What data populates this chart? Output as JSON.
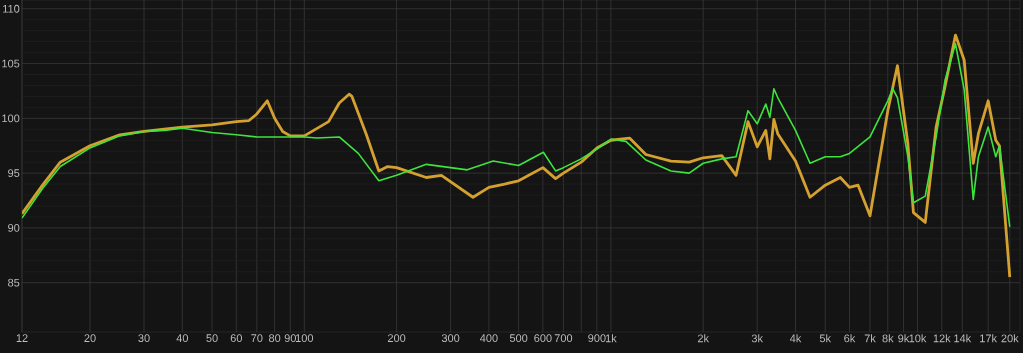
{
  "chart_data": {
    "type": "line",
    "log": "x",
    "grid": true,
    "marker": "none",
    "line_style": "solid",
    "xlim": [
      12,
      21600
    ],
    "ylim": [
      80.5,
      110.8
    ],
    "xticks": [
      12,
      20,
      30,
      40,
      50,
      60,
      70,
      80,
      90,
      100,
      200,
      300,
      400,
      500,
      600,
      700,
      {
        "value": 800,
        "label": null
      },
      900,
      {
        "value": 1000,
        "label": "1k"
      },
      {
        "value": 2000,
        "label": "2k"
      },
      {
        "value": 3000,
        "label": "3k"
      },
      {
        "value": 4000,
        "label": "4k"
      },
      {
        "value": 5000,
        "label": "5k"
      },
      {
        "value": 6000,
        "label": "6k"
      },
      {
        "value": 7000,
        "label": "7k"
      },
      {
        "value": 8000,
        "label": "8k"
      },
      {
        "value": 9000,
        "label": "9k"
      },
      {
        "value": 10000,
        "label": "10k"
      },
      {
        "value": 12000,
        "label": "12k"
      },
      {
        "value": 14000,
        "label": "14k"
      },
      {
        "value": 17000,
        "label": "17k"
      },
      {
        "value": 20000,
        "label": "20k"
      }
    ],
    "yticks": [
      85,
      90,
      95,
      100,
      105,
      110
    ],
    "series": [
      {
        "color": "#d4a030",
        "x": [
          12,
          14,
          16,
          20,
          25,
          30,
          40,
          50,
          60,
          66,
          70,
          75.7,
          80,
          85,
          90,
          100,
          120,
          130,
          140,
          143,
          159,
          175,
          187,
          200,
          250,
          280,
          355,
          400,
          450,
          500,
          600,
          660,
          700,
          800,
          900,
          1000,
          1150,
          1300,
          1570,
          1800,
          2000,
          2300,
          2560,
          2800,
          3000,
          3200,
          3300,
          3400,
          3500,
          4000,
          4460,
          5000,
          5600,
          6000,
          6400,
          7000,
          8000,
          8600,
          9300,
          9700,
          10600,
          11500,
          12300,
          13300,
          14200,
          15200,
          15800,
          17000,
          18000,
          18500,
          20000
        ],
        "values": [
          91.3,
          93.9,
          96.0,
          97.5,
          98.5,
          98.8,
          99.2,
          99.4,
          99.7,
          99.8,
          100.4,
          101.6,
          100.0,
          98.8,
          98.4,
          98.4,
          99.7,
          101.4,
          102.2,
          102.0,
          98.6,
          95.2,
          95.6,
          95.5,
          94.6,
          94.8,
          92.8,
          93.7,
          94.0,
          94.3,
          95.5,
          94.5,
          95.0,
          96.0,
          97.3,
          98.0,
          98.2,
          96.7,
          96.1,
          96.0,
          96.4,
          96.6,
          94.8,
          99.7,
          97.4,
          98.9,
          96.3,
          99.9,
          98.6,
          96.1,
          92.8,
          93.9,
          94.6,
          93.7,
          93.9,
          91.1,
          100.7,
          104.8,
          97.7,
          91.4,
          90.5,
          99.2,
          102.9,
          107.6,
          105.3,
          95.9,
          98.6,
          101.6,
          98.0,
          97.5,
          85.5
        ]
      },
      {
        "color": "#3ee43e",
        "x": [
          12,
          14,
          16,
          20,
          25,
          30,
          35,
          40,
          50,
          60,
          70,
          80,
          90,
          100,
          110,
          130,
          150,
          175,
          200,
          250,
          300,
          340,
          413,
          500,
          602,
          660,
          700,
          800,
          900,
          1000,
          1120,
          1300,
          1570,
          1800,
          2000,
          2300,
          2560,
          2800,
          3000,
          3200,
          3300,
          3400,
          3500,
          4000,
          4460,
          5000,
          5600,
          6000,
          7000,
          8000,
          8300,
          8600,
          9300,
          9700,
          10600,
          11500,
          12300,
          13300,
          14200,
          15200,
          15800,
          17000,
          18000,
          18500,
          20000
        ],
        "values": [
          90.9,
          93.6,
          95.6,
          97.3,
          98.4,
          98.8,
          98.9,
          99.1,
          98.7,
          98.5,
          98.3,
          98.3,
          98.3,
          98.3,
          98.2,
          98.3,
          96.8,
          94.3,
          94.8,
          95.8,
          95.5,
          95.3,
          96.1,
          95.7,
          96.9,
          95.2,
          95.5,
          96.3,
          97.2,
          98.1,
          97.9,
          96.2,
          95.2,
          95.0,
          95.9,
          96.3,
          96.5,
          100.7,
          99.5,
          101.3,
          100.1,
          102.7,
          101.9,
          98.9,
          95.9,
          96.5,
          96.5,
          96.8,
          98.3,
          101.6,
          102.7,
          101.9,
          96.5,
          92.3,
          92.9,
          98.3,
          103.5,
          106.8,
          102.6,
          92.6,
          96.5,
          99.2,
          96.5,
          97.5,
          90.1
        ]
      }
    ]
  }
}
